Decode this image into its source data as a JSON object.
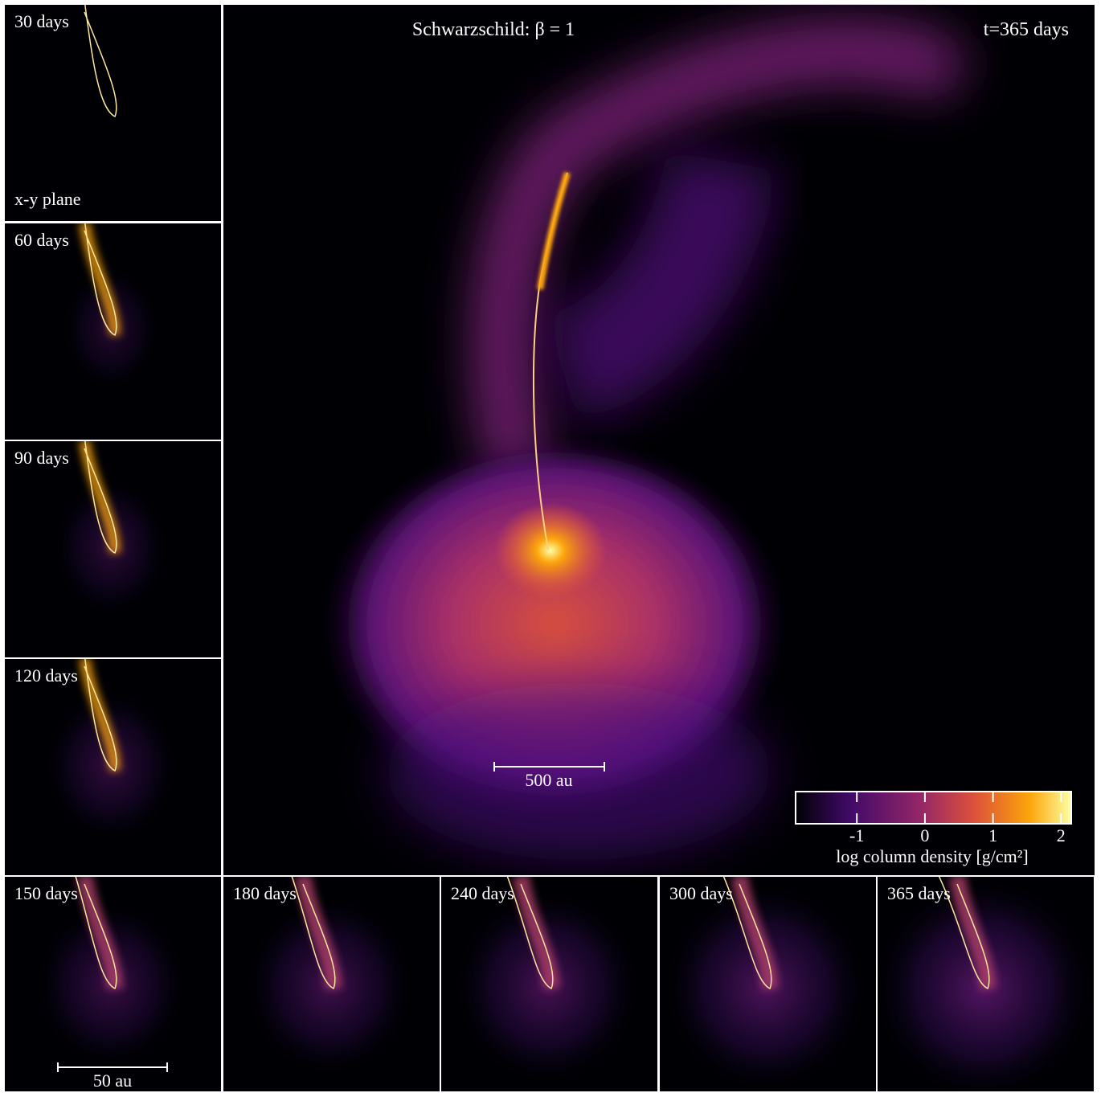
{
  "figure": {
    "title": "Schwarzschild: β = 1",
    "time": "t=365 days",
    "plane": "x-y plane",
    "panels": [
      "30 days",
      "60 days",
      "90 days",
      "120 days",
      "150 days",
      "180 days",
      "240 days",
      "300 days",
      "365 days"
    ],
    "scale_main": "500 au",
    "scale_small": "50 au",
    "colorbar": {
      "label": "log column density [g/cm²]",
      "lim": [
        -1.9,
        2.15
      ],
      "ticks": [
        -1,
        0,
        1,
        2
      ]
    }
  }
}
